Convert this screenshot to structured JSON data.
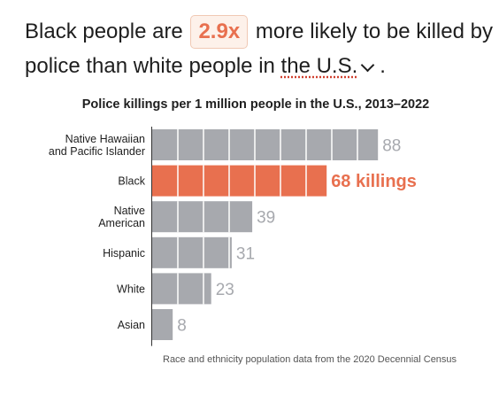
{
  "headline": {
    "part1": "Black people are",
    "ratio": "2.9x",
    "part2": "more likely to be killed by police than white people in",
    "geo": "the U.S.",
    "end": "."
  },
  "colors": {
    "bar": "#a7a9ae",
    "highlight": "#e8704f",
    "label_muted": "#a7a9ae"
  },
  "chart_data": {
    "type": "bar",
    "orientation": "horizontal",
    "title": "Police killings per 1 million people in the U.S., 2013–2022",
    "categories": [
      [
        "Native Hawaiian",
        "and Pacific Islander"
      ],
      [
        "Black"
      ],
      [
        "Native",
        "American"
      ],
      [
        "Hispanic"
      ],
      [
        "White"
      ],
      [
        "Asian"
      ]
    ],
    "values": [
      88,
      68,
      39,
      31,
      23,
      8
    ],
    "value_labels": [
      "88",
      "68 killings",
      "39",
      "31",
      "23",
      "8"
    ],
    "highlight_index": 1,
    "xlim": [
      0,
      100
    ],
    "grid_step": 10,
    "note": "Race and ethnicity population data from the 2020 Decennial Census"
  }
}
